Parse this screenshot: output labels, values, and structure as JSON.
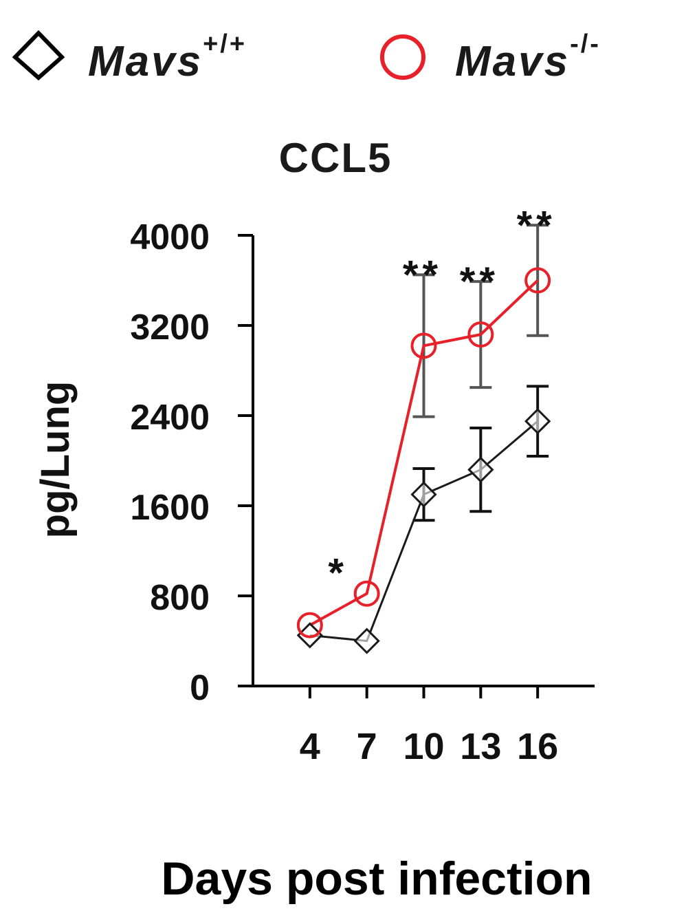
{
  "chart_data": {
    "type": "line",
    "title": "CCL5",
    "xlabel": "Days post infection",
    "ylabel": "pg/Lung",
    "x": [
      4,
      7,
      10,
      13,
      16
    ],
    "x_tick_labels": [
      "4",
      "7",
      "10",
      "13",
      "16"
    ],
    "x_range": [
      1,
      19
    ],
    "ylim": [
      0,
      4000
    ],
    "y_ticks": [
      0,
      800,
      1600,
      2400,
      3200,
      4000
    ],
    "y_tick_labels": [
      "0",
      "800",
      "1600",
      "2400",
      "3200",
      "4000"
    ],
    "grid": false,
    "legend_position": "top",
    "series": [
      {
        "name": "Mavs",
        "name_superscript": "+/+",
        "marker": "diamond",
        "color": "#1a1a1a",
        "values": [
          450,
          400,
          1700,
          1920,
          2350
        ],
        "error": [
          0,
          0,
          230,
          370,
          310
        ]
      },
      {
        "name": "Mavs",
        "name_superscript": "-/-",
        "marker": "circle",
        "color": "#e8202a",
        "values": [
          540,
          820,
          3020,
          3120,
          3600
        ],
        "error": [
          0,
          0,
          630,
          470,
          490
        ]
      }
    ],
    "significance": [
      "",
      "*",
      "**",
      "**",
      "**"
    ]
  }
}
